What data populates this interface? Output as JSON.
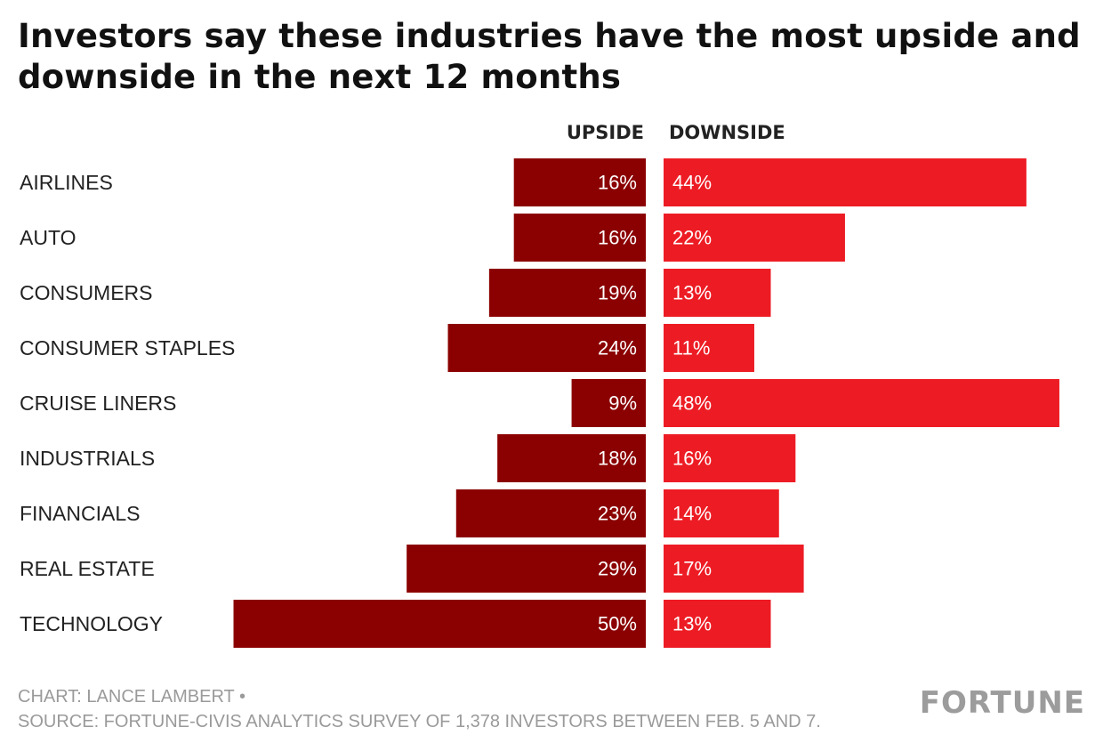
{
  "title": "Investors say these industries have the most upside and downside in the next 12 months",
  "column_headers": {
    "upside": "UPSIDE",
    "downside": "DOWNSIDE"
  },
  "colors": {
    "upside": "#8b0000",
    "downside": "#ed1c24",
    "label": "#222222",
    "footer": "#9a9a9a"
  },
  "chart_data": {
    "type": "bar",
    "orientation": "horizontal-diverging",
    "categories": [
      "AIRLINES",
      "AUTO",
      "CONSUMERS",
      "CONSUMER STAPLES",
      "CRUISE LINERS",
      "INDUSTRIALS",
      "FINANCIALS",
      "REAL ESTATE",
      "TECHNOLOGY"
    ],
    "series": [
      {
        "name": "UPSIDE",
        "values": [
          16,
          16,
          19,
          24,
          9,
          18,
          23,
          29,
          50
        ],
        "labels": [
          "16%",
          "16%",
          "19%",
          "24%",
          "9%",
          "18%",
          "23%",
          "29%",
          "50%"
        ]
      },
      {
        "name": "DOWNSIDE",
        "values": [
          44,
          22,
          13,
          11,
          48,
          16,
          14,
          17,
          13
        ],
        "labels": [
          "44%",
          "22%",
          "13%",
          "11%",
          "48%",
          "16%",
          "14%",
          "17%",
          "13%"
        ]
      }
    ],
    "unit": "%",
    "grid": false
  },
  "footer": {
    "credit": "CHART: LANCE LAMBERT •",
    "source": "SOURCE: FORTUNE-CIVIS ANALYTICS SURVEY OF 1,378 INVESTORS BETWEEN FEB. 5 AND 7."
  },
  "logo": "FORTUNE"
}
